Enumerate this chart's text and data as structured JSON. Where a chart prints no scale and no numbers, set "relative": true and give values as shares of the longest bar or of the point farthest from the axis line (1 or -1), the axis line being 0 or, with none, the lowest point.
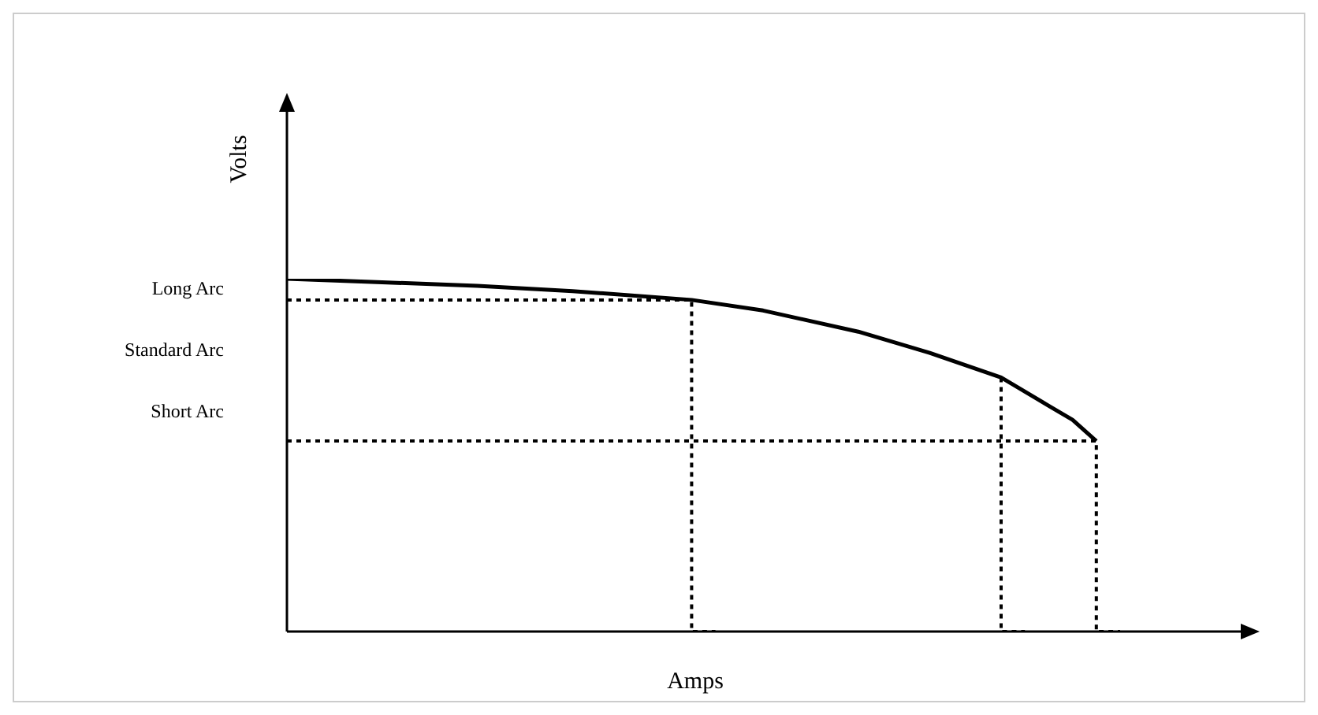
{
  "chart_data": {
    "type": "line",
    "relative": true,
    "xlabel": "Amps",
    "ylabel": "Volts",
    "marker": "none",
    "legend": false,
    "categories": [
      null,
      null,
      null,
      null,
      null,
      null,
      null,
      null,
      null,
      null,
      null,
      null,
      null,
      null,
      null,
      null,
      null,
      null,
      null,
      null,
      null,
      null,
      null,
      null,
      null,
      null,
      null,
      null,
      null,
      null,
      null,
      null,
      null,
      null,
      null,
      null,
      null,
      null,
      null,
      null,
      null
    ],
    "series": [
      {
        "type": "line",
        "color": "#000000",
        "line_style": "solid",
        "values": [
          1,
          null,
          null,
          null,
          0.99,
          null,
          null,
          null,
          0.98,
          null,
          null,
          null,
          0.965,
          null,
          null,
          null,
          null,
          0.94,
          null,
          null,
          0.91,
          null,
          null,
          null,
          0.85,
          null,
          null,
          0.79,
          null,
          null,
          0.72,
          null,
          0.64,
          0.6,
          0.54,
          null,
          null,
          null,
          null,
          null,
          null
        ]
      },
      {
        "type": "step",
        "color": "#000000",
        "line_style": "dotted",
        "values": [
          0.94,
          null,
          null,
          null,
          null,
          null,
          null,
          null,
          null,
          null,
          null,
          null,
          null,
          null,
          null,
          null,
          null,
          0.94,
          0,
          null,
          null,
          null,
          null,
          null,
          null,
          null,
          null,
          null,
          null,
          null,
          null,
          null,
          null,
          null,
          null,
          null,
          null,
          null,
          null,
          null,
          null
        ]
      },
      {
        "type": "step",
        "color": "#000000",
        "line_style": "dotted",
        "values": [
          null,
          null,
          null,
          null,
          null,
          null,
          null,
          null,
          null,
          null,
          null,
          null,
          null,
          null,
          null,
          null,
          null,
          null,
          null,
          null,
          null,
          null,
          null,
          null,
          null,
          null,
          null,
          null,
          null,
          null,
          0.72,
          0,
          null,
          null,
          null,
          null,
          null,
          null,
          null,
          null,
          null
        ]
      },
      {
        "type": "step",
        "color": "#000000",
        "line_style": "dotted",
        "values": [
          0.54,
          null,
          null,
          null,
          null,
          null,
          null,
          null,
          null,
          null,
          null,
          null,
          null,
          null,
          null,
          null,
          null,
          null,
          null,
          null,
          null,
          null,
          null,
          null,
          null,
          null,
          null,
          null,
          null,
          null,
          null,
          null,
          null,
          null,
          0.54,
          0,
          null,
          null,
          null,
          null,
          null
        ]
      }
    ],
    "annotations": [
      "Long Arc",
      "Standard Arc",
      "Short Arc"
    ]
  }
}
